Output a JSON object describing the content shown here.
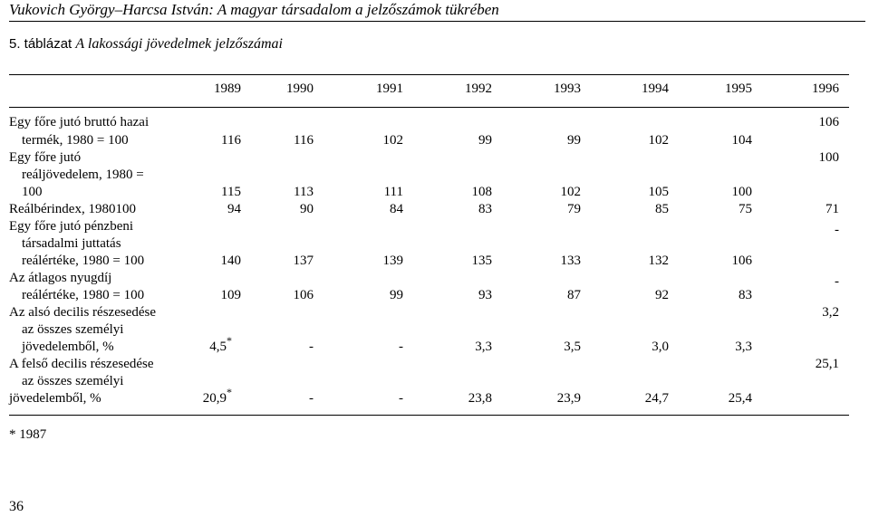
{
  "header": {
    "running_title": "Vukovich György–Harcsa István: A magyar társadalom a jelzőszámok tükrében"
  },
  "table": {
    "caption_prefix": "5. táblázat",
    "caption_title": "A lakossági jövedelmek jelzőszámai",
    "years": [
      "1989",
      "1990",
      "1991",
      "1992",
      "1993",
      "1994",
      "1995",
      "1996"
    ],
    "rows": [
      {
        "label_lines": [
          "Egy főre jutó bruttó hazai",
          "termék, 1980 = 100"
        ],
        "values": [
          "116",
          "116",
          "102",
          "99",
          "99",
          "102",
          "104",
          "106"
        ]
      },
      {
        "label_lines": [
          "Egy főre jutó",
          "reáljövedelem, 1980 =",
          "100"
        ],
        "values": [
          "115",
          "113",
          "111",
          "108",
          "102",
          "105",
          "100",
          "100"
        ]
      },
      {
        "label_lines": [
          "Reálbérindex, 1980100"
        ],
        "values": [
          "94",
          "90",
          "84",
          "83",
          "79",
          "85",
          "75",
          "71"
        ]
      },
      {
        "label_lines": [
          "Egy főre jutó pénzbeni",
          "társadalmi juttatás",
          "reálértéke, 1980 = 100"
        ],
        "values": [
          "140",
          "137",
          "139",
          "135",
          "133",
          "132",
          "106",
          "-"
        ]
      },
      {
        "label_lines": [
          "Az átlagos nyugdíj",
          "reálértéke, 1980 = 100"
        ],
        "values": [
          "109",
          "106",
          "99",
          "93",
          "87",
          "92",
          "83",
          "-"
        ]
      },
      {
        "label_lines": [
          "Az alsó decilis részesedése",
          "az összes személyi",
          "jövedelemből, %"
        ],
        "values": [
          "4,5",
          "-",
          "-",
          "3,3",
          "3,5",
          "3,0",
          "3,3",
          "3,2"
        ],
        "first_value_mark": "*"
      },
      {
        "label_lines": [
          "A felső decilis részesedése",
          "az összes személyi",
          "jövedelemből, %"
        ],
        "values": [
          "20,9",
          "-",
          "-",
          "23,8",
          "23,9",
          "24,7",
          "25,4",
          "25,1"
        ],
        "first_value_mark": "*"
      }
    ],
    "footnote": "* 1987"
  },
  "page_number": "36"
}
